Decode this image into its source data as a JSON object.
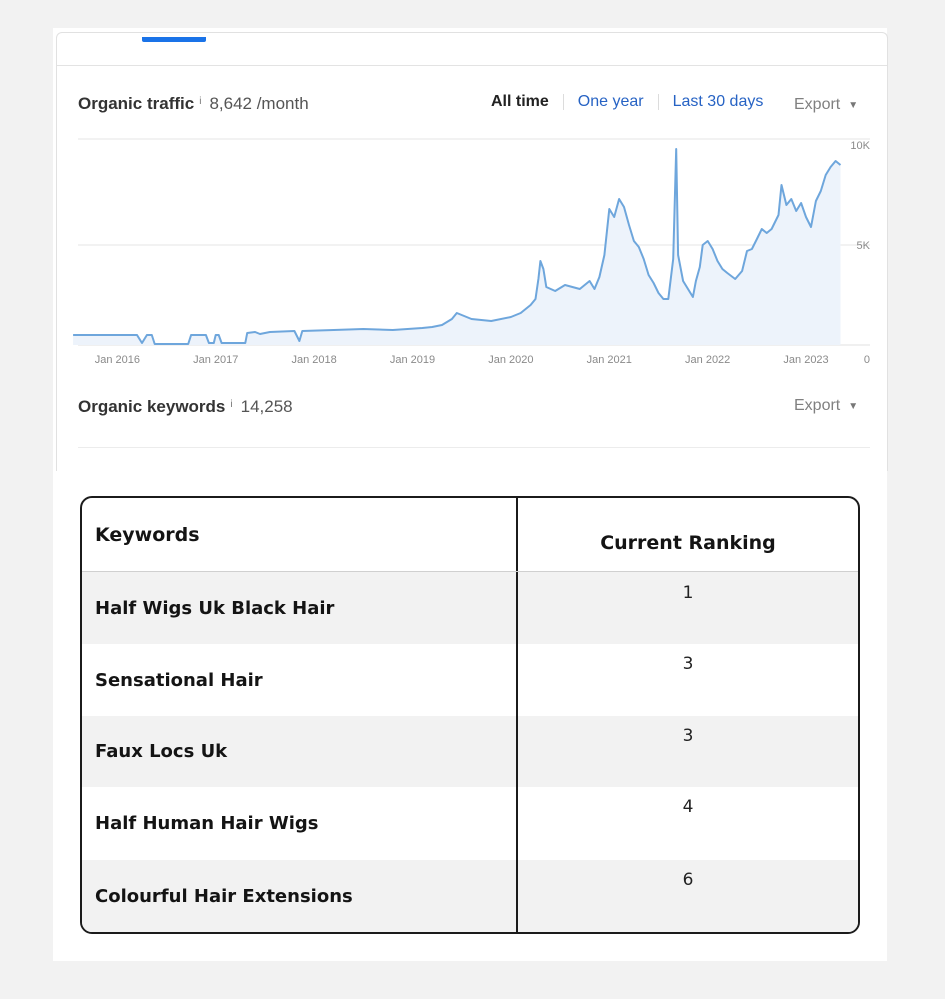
{
  "traffic": {
    "title": "Organic traffic",
    "info_glyph": "i",
    "value": "8,642 /month",
    "range_tabs": [
      "All time",
      "One year",
      "Last 30 days"
    ],
    "active_range": "All time",
    "export_label": "Export"
  },
  "keywords_metric": {
    "title": "Organic keywords",
    "info_glyph": "i",
    "value": "14,258",
    "export_label": "Export"
  },
  "chart_data": {
    "type": "area",
    "x_tick_labels": [
      "Jan 2016",
      "Jan 2017",
      "Jan 2018",
      "Jan 2019",
      "Jan 2020",
      "Jan 2021",
      "Jan 2022",
      "Jan 2023"
    ],
    "y_tick_labels": [
      "10K",
      "5K",
      "0"
    ],
    "ylim": [
      0,
      10000
    ],
    "xlim": [
      2015.55,
      2023.35
    ],
    "grid": true,
    "series": [
      {
        "color": "#6ea6dc",
        "fill": "#edf3fb",
        "points": [
          [
            2015.55,
            500
          ],
          [
            2016.2,
            500
          ],
          [
            2016.25,
            100
          ],
          [
            2016.3,
            500
          ],
          [
            2016.35,
            500
          ],
          [
            2016.38,
            50
          ],
          [
            2016.72,
            50
          ],
          [
            2016.75,
            500
          ],
          [
            2016.9,
            500
          ],
          [
            2016.93,
            100
          ],
          [
            2016.98,
            100
          ],
          [
            2017.0,
            500
          ],
          [
            2017.03,
            500
          ],
          [
            2017.06,
            100
          ],
          [
            2017.3,
            100
          ],
          [
            2017.32,
            600
          ],
          [
            2017.4,
            650
          ],
          [
            2017.45,
            550
          ],
          [
            2017.55,
            650
          ],
          [
            2017.8,
            700
          ],
          [
            2017.85,
            200
          ],
          [
            2017.88,
            700
          ],
          [
            2018.2,
            750
          ],
          [
            2018.5,
            800
          ],
          [
            2018.8,
            750
          ],
          [
            2019.1,
            850
          ],
          [
            2019.2,
            900
          ],
          [
            2019.3,
            1000
          ],
          [
            2019.4,
            1300
          ],
          [
            2019.45,
            1600
          ],
          [
            2019.5,
            1500
          ],
          [
            2019.6,
            1300
          ],
          [
            2019.8,
            1200
          ],
          [
            2020.0,
            1400
          ],
          [
            2020.1,
            1600
          ],
          [
            2020.2,
            2000
          ],
          [
            2020.25,
            2300
          ],
          [
            2020.28,
            3300
          ],
          [
            2020.3,
            4200
          ],
          [
            2020.33,
            3800
          ],
          [
            2020.36,
            2900
          ],
          [
            2020.45,
            2700
          ],
          [
            2020.55,
            3000
          ],
          [
            2020.7,
            2800
          ],
          [
            2020.8,
            3200
          ],
          [
            2020.85,
            2800
          ],
          [
            2020.9,
            3400
          ],
          [
            2020.95,
            4500
          ],
          [
            2021.0,
            6800
          ],
          [
            2021.05,
            6400
          ],
          [
            2021.1,
            7300
          ],
          [
            2021.15,
            6900
          ],
          [
            2021.2,
            6000
          ],
          [
            2021.25,
            5200
          ],
          [
            2021.3,
            4900
          ],
          [
            2021.35,
            4300
          ],
          [
            2021.4,
            3500
          ],
          [
            2021.45,
            3100
          ],
          [
            2021.5,
            2600
          ],
          [
            2021.55,
            2300
          ],
          [
            2021.6,
            2300
          ],
          [
            2021.65,
            4300
          ],
          [
            2021.68,
            9800
          ],
          [
            2021.7,
            4500
          ],
          [
            2021.75,
            3200
          ],
          [
            2021.8,
            2800
          ],
          [
            2021.85,
            2400
          ],
          [
            2021.88,
            3200
          ],
          [
            2021.92,
            3900
          ],
          [
            2021.95,
            5000
          ],
          [
            2022.0,
            5200
          ],
          [
            2022.05,
            4800
          ],
          [
            2022.1,
            4200
          ],
          [
            2022.15,
            3800
          ],
          [
            2022.2,
            3600
          ],
          [
            2022.28,
            3300
          ],
          [
            2022.35,
            3700
          ],
          [
            2022.4,
            4700
          ],
          [
            2022.45,
            4800
          ],
          [
            2022.5,
            5300
          ],
          [
            2022.55,
            5800
          ],
          [
            2022.6,
            5600
          ],
          [
            2022.65,
            5800
          ],
          [
            2022.72,
            6500
          ],
          [
            2022.75,
            8000
          ],
          [
            2022.8,
            7000
          ],
          [
            2022.85,
            7300
          ],
          [
            2022.9,
            6700
          ],
          [
            2022.95,
            7100
          ],
          [
            2023.0,
            6400
          ],
          [
            2023.05,
            5900
          ],
          [
            2023.1,
            7200
          ],
          [
            2023.15,
            7700
          ],
          [
            2023.2,
            8500
          ],
          [
            2023.25,
            8900
          ],
          [
            2023.3,
            9200
          ],
          [
            2023.35,
            9000
          ]
        ]
      }
    ]
  },
  "table": {
    "headers": [
      "Keywords",
      "Current Ranking"
    ],
    "rows": [
      {
        "keyword": "Half Wigs Uk Black Hair",
        "ranking": "1"
      },
      {
        "keyword": "Sensational Hair",
        "ranking": "3"
      },
      {
        "keyword": "Faux Locs Uk",
        "ranking": "3"
      },
      {
        "keyword": "Half Human Hair Wigs",
        "ranking": "4"
      },
      {
        "keyword": "Colourful Hair Extensions",
        "ranking": "6"
      }
    ]
  }
}
